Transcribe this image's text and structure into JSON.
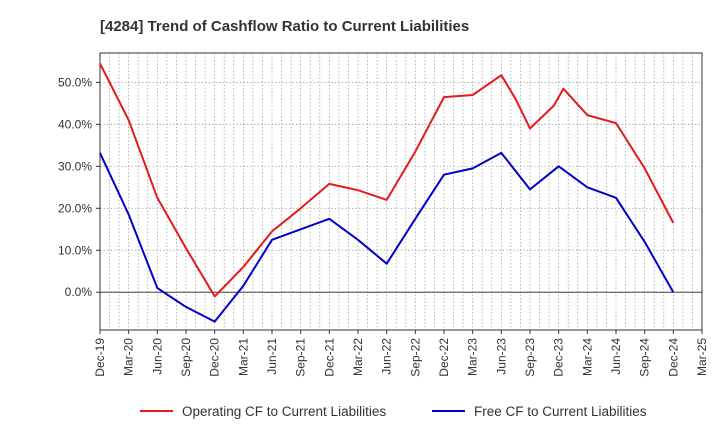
{
  "chart_data": {
    "type": "line",
    "title": "[4284]  Trend of Cashflow Ratio to Current Liabilities",
    "xlabel": "",
    "ylabel": "",
    "x_tick_labels": [
      "Dec-19",
      "Mar-20",
      "Jun-20",
      "Sep-20",
      "Dec-20",
      "Mar-21",
      "Jun-21",
      "Sep-21",
      "Dec-21",
      "Mar-22",
      "Jun-22",
      "Sep-22",
      "Dec-22",
      "Mar-23",
      "Jun-23",
      "Sep-23",
      "Dec-23",
      "Mar-24",
      "Jun-24",
      "Sep-24",
      "Dec-24",
      "Mar-25"
    ],
    "y_tick_labels": [
      "0.0%",
      "10.0%",
      "20.0%",
      "30.0%",
      "40.0%",
      "50.0%"
    ],
    "y_ticks": [
      0,
      10,
      20,
      30,
      40,
      50
    ],
    "xlim": [
      0,
      63
    ],
    "ylim": [
      -9,
      57
    ],
    "grid": true,
    "legend_position": "bottom",
    "series": [
      {
        "name": "Operating CF to Current Liabilities",
        "color": "#e41a1c",
        "x": [
          0,
          3,
          6,
          9,
          12,
          15,
          18,
          21,
          24,
          27,
          30,
          33,
          36,
          39,
          42,
          43.5,
          45,
          47.5,
          48.5,
          51,
          54,
          57,
          60
        ],
        "y": [
          54.5,
          41.0,
          22.5,
          10.5,
          -1.0,
          6.0,
          14.5,
          20.0,
          25.8,
          24.3,
          22.0,
          33.5,
          46.5,
          47.0,
          51.7,
          46.0,
          39.0,
          44.5,
          48.5,
          42.2,
          40.3,
          29.5,
          16.5
        ]
      },
      {
        "name": "Free CF to Current Liabilities",
        "color": "#0000cc",
        "x": [
          0,
          3,
          6,
          9,
          12,
          15,
          18,
          21,
          24,
          27,
          30,
          33,
          36,
          39,
          42,
          45,
          48,
          51,
          54,
          57,
          60
        ],
        "y": [
          33.2,
          18.5,
          1.0,
          -3.5,
          -7.0,
          1.5,
          12.5,
          15.0,
          17.5,
          12.5,
          6.8,
          17.5,
          28.0,
          29.5,
          33.2,
          24.5,
          30.0,
          25.0,
          22.5,
          12.0,
          0.0
        ]
      }
    ]
  }
}
